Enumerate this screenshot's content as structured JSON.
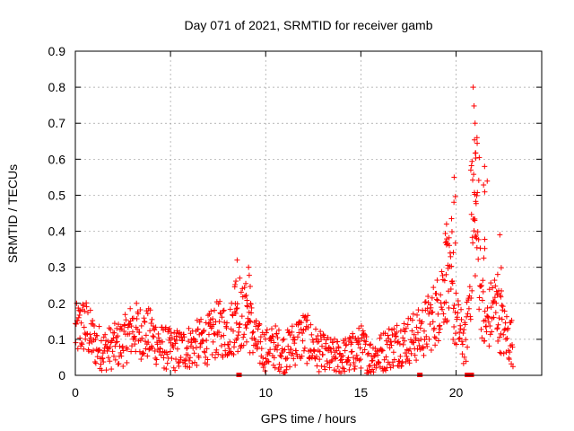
{
  "chart_data": {
    "type": "scatter",
    "title": "Day 071 of 2021, SRMTID for receiver gamb",
    "xlabel": "GPS time / hours",
    "ylabel": "SRMTID / TECUs",
    "xlim": [
      0,
      24.5
    ],
    "ylim": [
      0,
      0.9
    ],
    "xticks": [
      0,
      5,
      10,
      15,
      20
    ],
    "xtick_labels": [
      "0",
      "5",
      "10",
      "15",
      "20"
    ],
    "yticks": [
      0,
      0.1,
      0.2,
      0.3,
      0.4,
      0.5,
      0.6,
      0.7,
      0.8,
      0.9
    ],
    "ytick_labels": [
      "0",
      "0.1",
      "0.2",
      "0.3",
      "0.4",
      "0.5",
      "0.6",
      "0.7",
      "0.8",
      "0.9"
    ],
    "grid": true,
    "marker": "+",
    "color": "#ff0000",
    "series": [
      {
        "name": "SRMTID",
        "envelope_x": [
          0,
          0.5,
          1,
          1.5,
          2,
          2.5,
          3,
          3.5,
          4,
          4.5,
          5,
          5.5,
          6,
          6.5,
          7,
          7.5,
          8,
          8.5,
          9,
          9.5,
          10,
          10.5,
          11,
          11.5,
          12,
          12.5,
          13,
          13.5,
          14,
          14.5,
          15,
          15.5,
          16,
          16.5,
          17,
          17.5,
          18,
          18.5,
          19,
          19.5,
          20,
          20.5,
          21,
          21.5,
          22,
          22.5,
          23
        ],
        "envelope_y": [
          0.12,
          0.14,
          0.09,
          0.07,
          0.08,
          0.09,
          0.13,
          0.12,
          0.11,
          0.08,
          0.07,
          0.07,
          0.08,
          0.09,
          0.1,
          0.13,
          0.12,
          0.15,
          0.17,
          0.09,
          0.07,
          0.08,
          0.06,
          0.09,
          0.11,
          0.08,
          0.06,
          0.05,
          0.05,
          0.06,
          0.08,
          0.05,
          0.06,
          0.08,
          0.09,
          0.1,
          0.11,
          0.14,
          0.18,
          0.28,
          0.15,
          0.08,
          0.45,
          0.12,
          0.2,
          0.12,
          0.09
        ],
        "peaks": [
          {
            "x": 8.5,
            "y": 0.32
          },
          {
            "x": 9.1,
            "y": 0.3
          },
          {
            "x": 19.5,
            "y": 0.42
          },
          {
            "x": 19.9,
            "y": 0.55
          },
          {
            "x": 20.9,
            "y": 0.8
          },
          {
            "x": 21.0,
            "y": 0.7
          },
          {
            "x": 21.1,
            "y": 0.66
          },
          {
            "x": 21.5,
            "y": 0.58
          },
          {
            "x": 22.3,
            "y": 0.39
          }
        ],
        "zero_markers_x": [
          8.6,
          18.1,
          20.6,
          20.8
        ]
      }
    ]
  }
}
